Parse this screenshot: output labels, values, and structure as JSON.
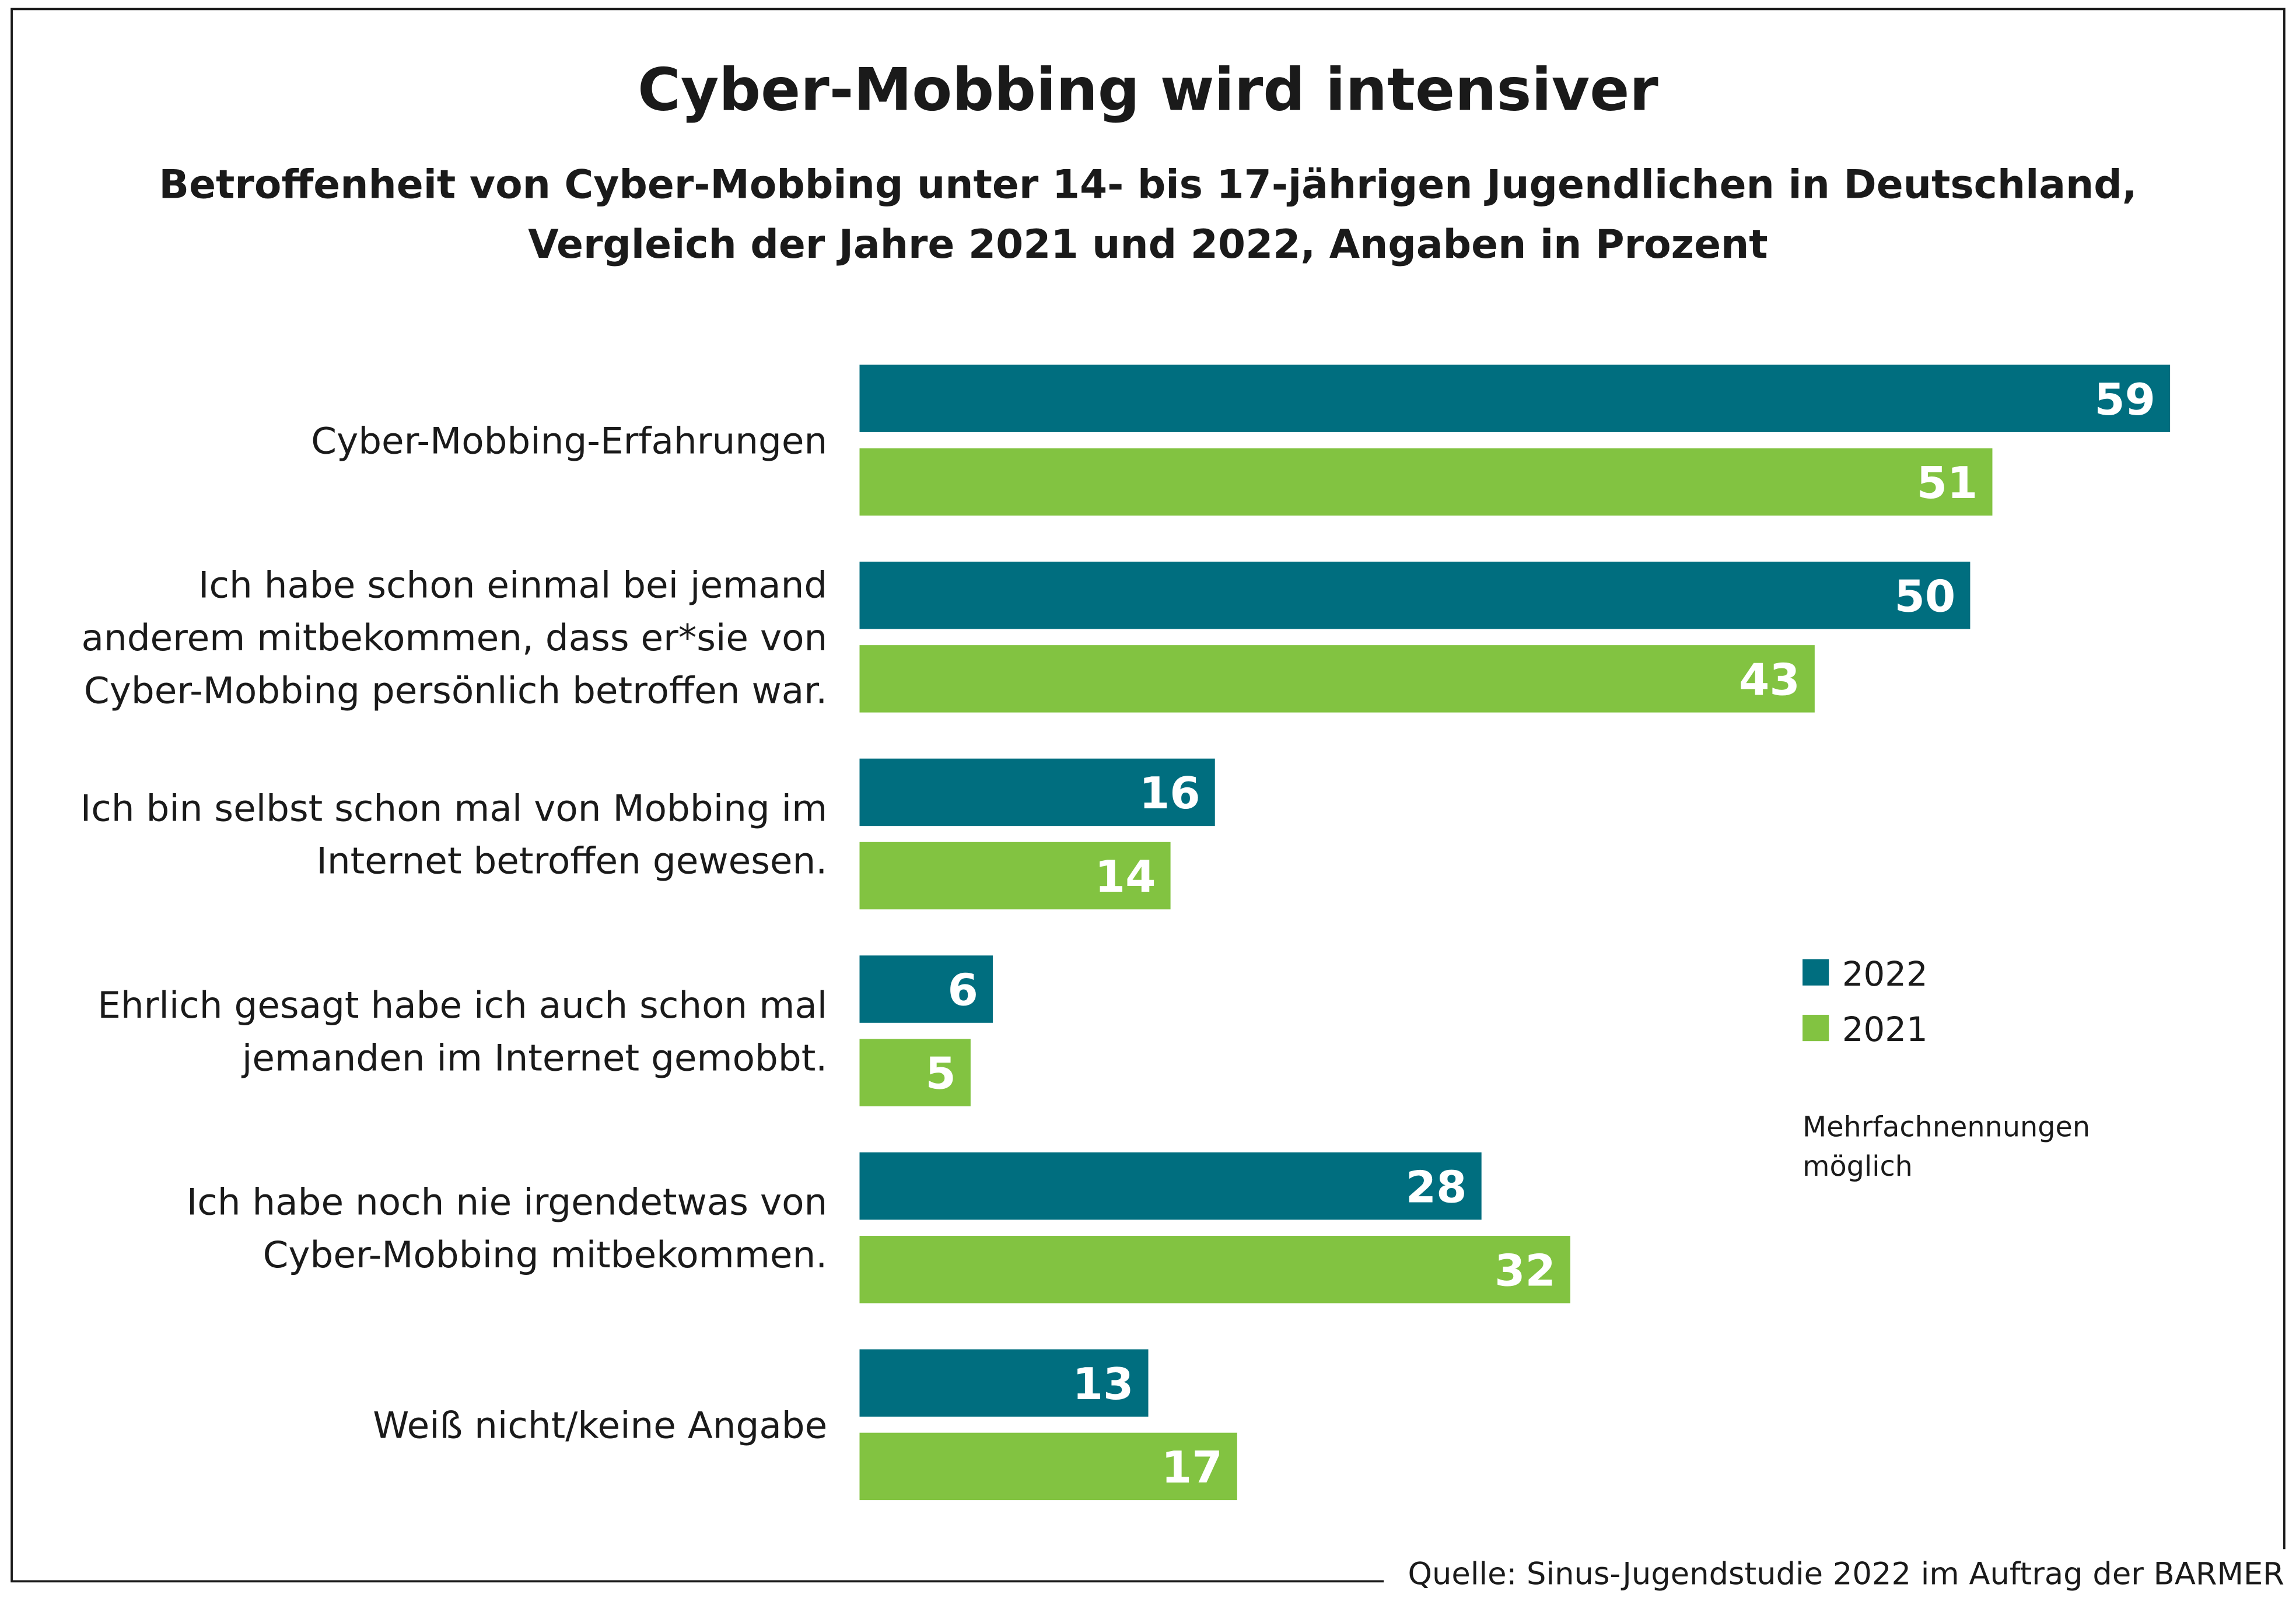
{
  "chart_data": {
    "type": "bar",
    "orientation": "horizontal",
    "title": "Cyber-Mobbing wird intensiver",
    "subtitle_lines": [
      "Betroffenheit von Cyber-Mobbing unter 14- bis 17-jährigen Jugendlichen in Deutschland,",
      "Vergleich der Jahre 2021 und 2022, Angaben in Prozent"
    ],
    "categories": [
      [
        "Cyber-Mobbing-Erfahrungen"
      ],
      [
        "Ich habe schon einmal bei jemand",
        "anderem mitbekommen, dass er*sie von",
        "Cyber-Mobbing persönlich betroffen war."
      ],
      [
        "Ich bin selbst schon mal von Mobbing im",
        "Internet betroffen gewesen."
      ],
      [
        "Ehrlich gesagt habe ich auch schon mal",
        "jemanden im Internet gemobbt."
      ],
      [
        "Ich habe noch nie irgendetwas von",
        "Cyber-Mobbing mitbekommen."
      ],
      [
        "Weiß nicht/keine Angabe"
      ]
    ],
    "series": [
      {
        "name": "2022",
        "color": "#006e7f",
        "values": [
          59,
          50,
          16,
          6,
          28,
          13
        ]
      },
      {
        "name": "2021",
        "color": "#82c341",
        "values": [
          51,
          43,
          14,
          5,
          32,
          17
        ]
      }
    ],
    "xlim": [
      0,
      59
    ],
    "grid": false,
    "data_labels": true,
    "legend_position": "right",
    "note_lines": [
      "Mehrfachnennungen",
      "möglich"
    ],
    "source": "Quelle: Sinus-Jugendstudie 2022 im Auftrag der BARMER"
  }
}
